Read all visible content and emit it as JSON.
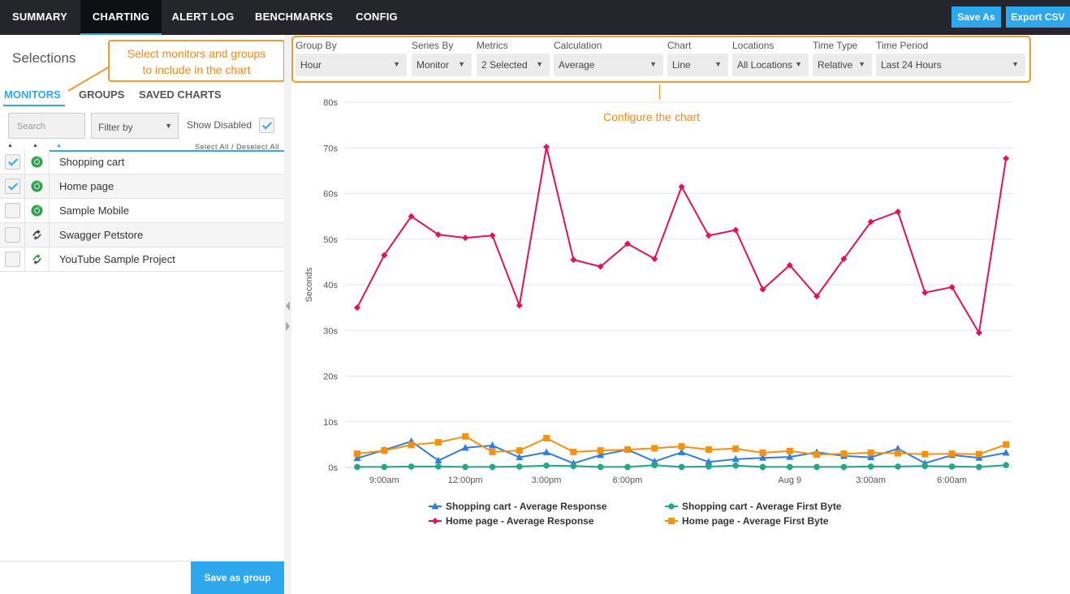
{
  "nav": {
    "tabs": [
      "SUMMARY",
      "CHARTING",
      "ALERT LOG",
      "BENCHMARKS",
      "CONFIG"
    ],
    "save_as": "Save As",
    "export_csv": "Export CSV"
  },
  "left": {
    "title": "Selections",
    "callout": "Select monitors and groups to include in the chart",
    "callout_line1": "Select monitors and groups",
    "callout_line2": "to include in the chart",
    "tabs": [
      "MONITORS",
      "GROUPS",
      "SAVED CHARTS"
    ],
    "search_placeholder": "Search",
    "filter_label": "Filter by",
    "show_disabled": "Show Disabled",
    "select_all": "Select All / Deselect All",
    "monitors": [
      {
        "name": "Shopping cart",
        "checked": true,
        "icon": "chrome-icon"
      },
      {
        "name": "Home page",
        "checked": true,
        "icon": "chrome-icon"
      },
      {
        "name": "Sample Mobile",
        "checked": false,
        "icon": "chrome-icon"
      },
      {
        "name": "Swagger Petstore",
        "checked": false,
        "icon": "api-icon"
      },
      {
        "name": "YouTube Sample Project",
        "checked": false,
        "icon": "api-green-icon"
      }
    ],
    "save_group": "Save as group"
  },
  "controls": {
    "group_by": {
      "label": "Group By",
      "value": "Hour"
    },
    "series_by": {
      "label": "Series By",
      "value": "Monitor"
    },
    "metrics": {
      "label": "Metrics",
      "value": "2 Selected"
    },
    "calculation": {
      "label": "Calculation",
      "value": "Average"
    },
    "chart": {
      "label": "Chart",
      "value": "Line"
    },
    "locations": {
      "label": "Locations",
      "value": "All Locations"
    },
    "time_type": {
      "label": "Time Type",
      "value": "Relative"
    },
    "time_period": {
      "label": "Time Period",
      "value": "Last 24 Hours"
    }
  },
  "configure_label": "Configure the chart",
  "colors": {
    "accent": "#2ea8ec",
    "orange": "#f39a2e",
    "sc_resp": "#2f7ed8",
    "hp_resp": "#e0115f",
    "sc_fb": "#27a58a",
    "hp_fb": "#f7900d"
  },
  "chart_data": {
    "type": "line",
    "ylabel": "Seconds",
    "ylim": [
      0,
      80
    ],
    "yticks": [
      "0s",
      "10s",
      "20s",
      "30s",
      "40s",
      "50s",
      "60s",
      "70s",
      "80s"
    ],
    "xtick_labels": [
      {
        "at": 1,
        "label": "9:00am"
      },
      {
        "at": 4,
        "label": "12:00pm"
      },
      {
        "at": 7,
        "label": "3:00pm"
      },
      {
        "at": 10,
        "label": "6:00pm"
      },
      {
        "at": 16,
        "label": "Aug 9"
      },
      {
        "at": 19,
        "label": "3:00am"
      },
      {
        "at": 22,
        "label": "6:00am"
      }
    ],
    "series": [
      {
        "name": "Home page - Average Response",
        "marker": "diamond",
        "color": "#e0115f",
        "values": [
          35,
          46.5,
          55,
          51,
          50.3,
          50.8,
          35.5,
          70.2,
          45.5,
          44,
          49,
          45.7,
          61.5,
          50.8,
          52,
          39,
          44.3,
          37.5,
          45.7,
          53.8,
          56,
          38.3,
          39.5,
          29.5,
          67.7
        ]
      },
      {
        "name": "Shopping cart - Average Response",
        "marker": "triangle",
        "color": "#2f7ed8",
        "values": [
          2,
          3.8,
          5.7,
          1.5,
          4.3,
          4.8,
          2.2,
          3.3,
          0.9,
          2.7,
          3.9,
          1.3,
          3.3,
          1.2,
          1.8,
          2.1,
          2.3,
          3.3,
          2.5,
          2.2,
          4.1,
          0.9,
          2.7,
          2.1,
          3.2
        ]
      },
      {
        "name": "Shopping cart - Average First Byte",
        "marker": "circle",
        "color": "#27a58a",
        "values": [
          0.1,
          0.1,
          0.2,
          0.2,
          0.1,
          0.1,
          0.2,
          0.4,
          0.3,
          0.1,
          0.1,
          0.5,
          0.1,
          0.2,
          0.4,
          0.1,
          0.1,
          0.1,
          0.1,
          0.2,
          0.2,
          0.3,
          0.2,
          0.1,
          0.5
        ]
      },
      {
        "name": "Home page - Average First Byte",
        "marker": "square",
        "color": "#f7900d",
        "values": [
          3,
          3.7,
          4.9,
          5.5,
          6.8,
          3.4,
          3.7,
          6.4,
          3.4,
          3.7,
          3.9,
          4.2,
          4.6,
          3.9,
          4.1,
          3.2,
          3.6,
          2.8,
          3,
          3.2,
          3.1,
          2.9,
          3,
          2.9,
          5
        ]
      }
    ],
    "legend": [
      {
        "name": "Shopping cart - Average Response",
        "marker": "triangle",
        "color": "#2f7ed8"
      },
      {
        "name": "Shopping cart - Average First Byte",
        "marker": "circle",
        "color": "#27a58a"
      },
      {
        "name": "Home page - Average Response",
        "marker": "diamond",
        "color": "#e0115f"
      },
      {
        "name": "Home page - Average First Byte",
        "marker": "square",
        "color": "#f7900d"
      }
    ]
  }
}
